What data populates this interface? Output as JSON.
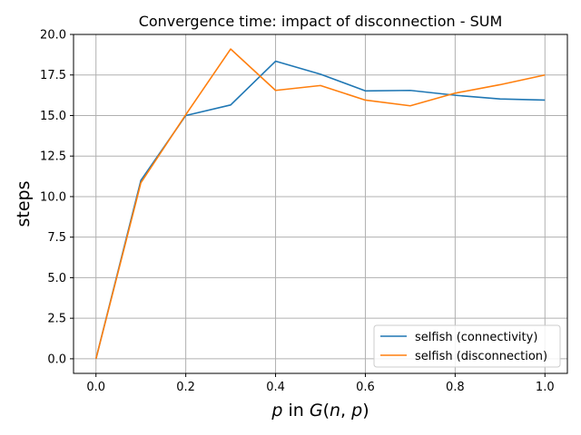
{
  "chart_data": {
    "type": "line",
    "title": "Convergence time: impact of disconnection - SUM",
    "xlabel": "p in G(n,p)",
    "ylabel": "steps",
    "x": [
      0.0,
      0.1,
      0.2,
      0.3,
      0.4,
      0.5,
      0.6,
      0.7,
      0.8,
      0.9,
      1.0
    ],
    "xlim": [
      -0.05,
      1.05
    ],
    "ylim": [
      -0.9,
      20.0
    ],
    "xticks": [
      0.0,
      0.2,
      0.4,
      0.6,
      0.8,
      1.0
    ],
    "xtick_labels": [
      "0.0",
      "0.2",
      "0.4",
      "0.6",
      "0.8",
      "1.0"
    ],
    "yticks": [
      0.0,
      2.5,
      5.0,
      7.5,
      10.0,
      12.5,
      15.0,
      17.5,
      20.0
    ],
    "ytick_labels": [
      "0.0",
      "2.5",
      "5.0",
      "7.5",
      "10.0",
      "12.5",
      "15.0",
      "17.5",
      "20.0"
    ],
    "grid": true,
    "legend_position": "lower-right",
    "series": [
      {
        "name": "selfish (connectivity)",
        "color": "#1f77b4",
        "values": [
          0.0,
          11.0,
          15.0,
          15.65,
          18.35,
          17.55,
          16.52,
          16.55,
          16.25,
          16.02,
          15.95
        ]
      },
      {
        "name": "selfish (disconnection)",
        "color": "#ff7f0e",
        "values": [
          0.0,
          10.85,
          15.05,
          19.1,
          16.55,
          16.85,
          15.95,
          15.6,
          16.38,
          16.9,
          17.5
        ]
      }
    ]
  }
}
